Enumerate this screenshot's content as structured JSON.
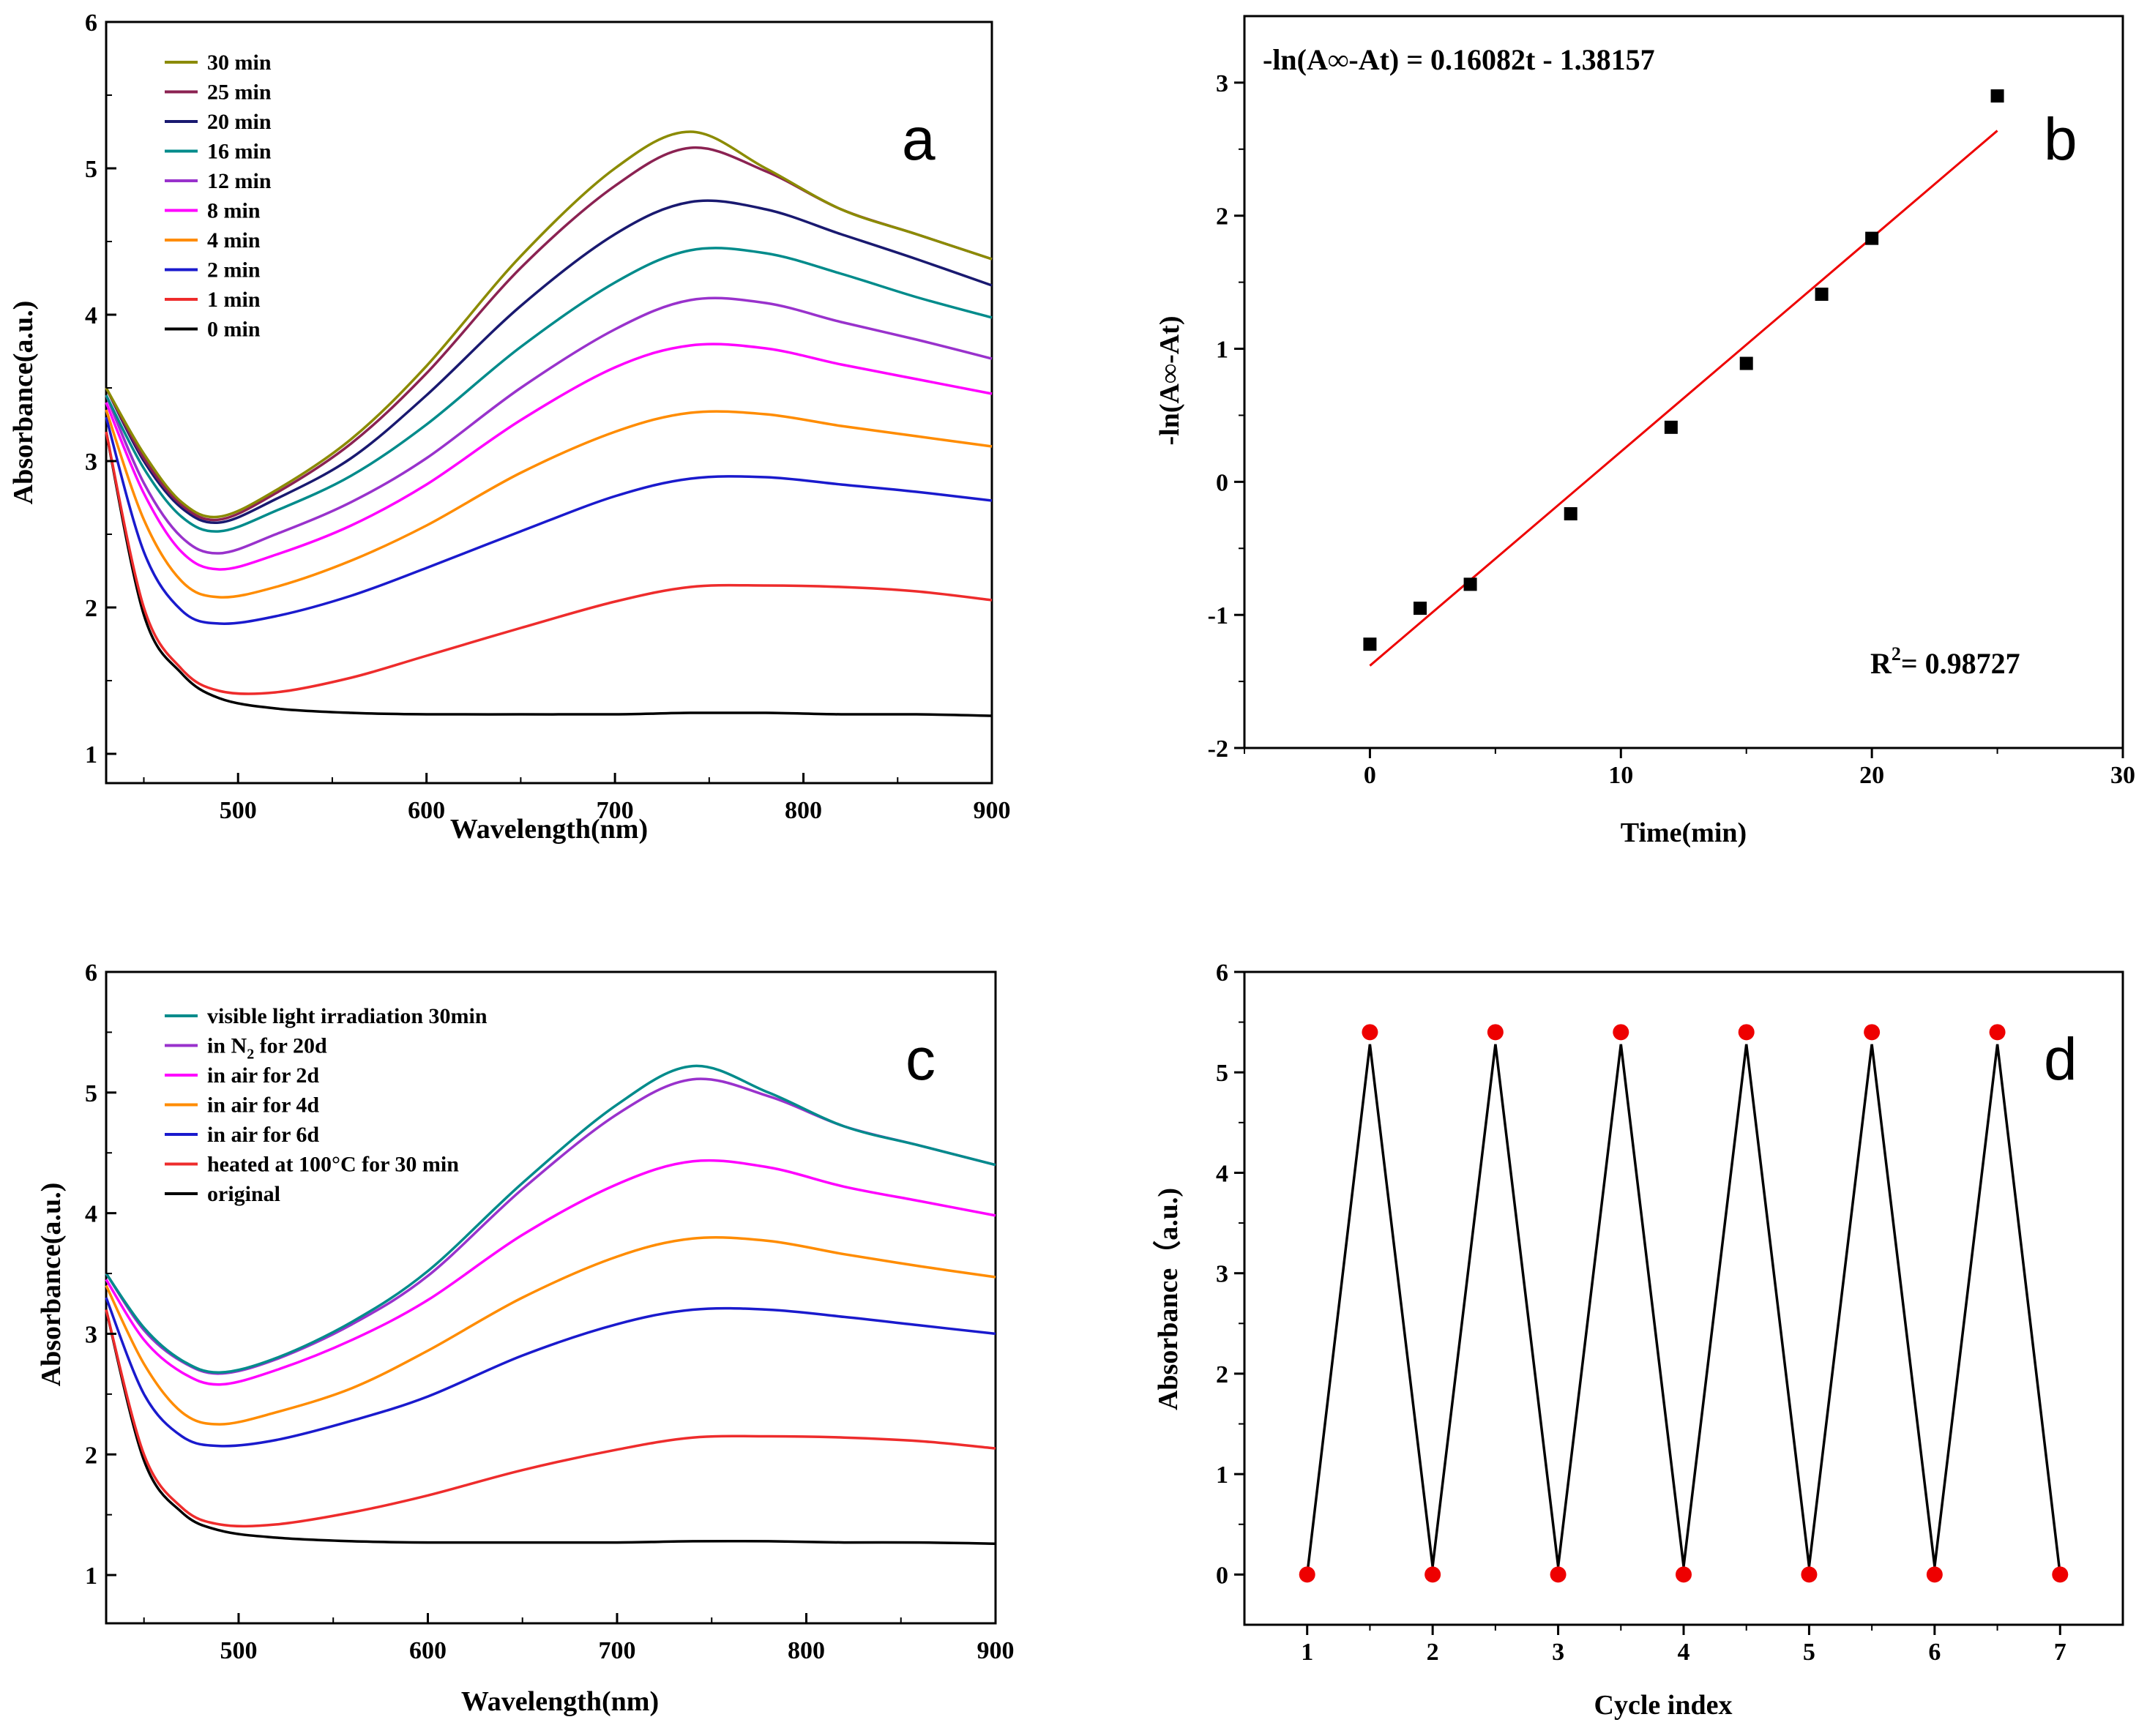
{
  "chart_data": [
    {
      "type": "line",
      "panel_label": "a",
      "xlabel": "Wavelength(nm)",
      "ylabel": "Absorbance(a.u.)",
      "xlim": [
        430,
        900
      ],
      "ylim": [
        0.8,
        6
      ],
      "xticks": [
        500,
        600,
        700,
        800,
        900
      ],
      "yticks": [
        1,
        2,
        3,
        4,
        5,
        6
      ],
      "legend_position": "top-left",
      "x": [
        430,
        450,
        470,
        490,
        520,
        560,
        600,
        650,
        700,
        740,
        780,
        820,
        860,
        900
      ],
      "series": [
        {
          "name": "30 min",
          "color": "#8b8b00",
          "values": [
            3.5,
            3.05,
            2.72,
            2.62,
            2.8,
            3.15,
            3.65,
            4.4,
            5.0,
            5.25,
            5.0,
            4.72,
            4.55,
            4.38
          ]
        },
        {
          "name": "25 min",
          "color": "#8b2252",
          "values": [
            3.5,
            3.02,
            2.7,
            2.6,
            2.78,
            3.12,
            3.6,
            4.32,
            4.88,
            5.14,
            4.98,
            4.72,
            4.55,
            4.38
          ]
        },
        {
          "name": "20 min",
          "color": "#191970",
          "values": [
            3.5,
            3.0,
            2.68,
            2.58,
            2.74,
            3.02,
            3.45,
            4.06,
            4.55,
            4.77,
            4.72,
            4.55,
            4.38,
            4.2
          ]
        },
        {
          "name": "16 min",
          "color": "#008b8b",
          "values": [
            3.45,
            2.95,
            2.62,
            2.52,
            2.66,
            2.9,
            3.25,
            3.78,
            4.22,
            4.44,
            4.42,
            4.28,
            4.12,
            3.98
          ]
        },
        {
          "name": "12 min",
          "color": "#9932cc",
          "values": [
            3.45,
            2.85,
            2.48,
            2.37,
            2.5,
            2.72,
            3.02,
            3.5,
            3.9,
            4.1,
            4.08,
            3.95,
            3.83,
            3.7
          ]
        },
        {
          "name": "8 min",
          "color": "#ff00ff",
          "values": [
            3.4,
            2.78,
            2.38,
            2.26,
            2.36,
            2.56,
            2.84,
            3.28,
            3.64,
            3.79,
            3.77,
            3.66,
            3.56,
            3.46
          ]
        },
        {
          "name": "4 min",
          "color": "#ff8c00",
          "values": [
            3.35,
            2.6,
            2.18,
            2.07,
            2.14,
            2.32,
            2.56,
            2.92,
            3.2,
            3.33,
            3.32,
            3.24,
            3.17,
            3.1
          ]
        },
        {
          "name": "2 min",
          "color": "#1a1acd",
          "values": [
            3.3,
            2.38,
            1.98,
            1.89,
            1.94,
            2.08,
            2.27,
            2.52,
            2.76,
            2.88,
            2.89,
            2.84,
            2.79,
            2.73
          ]
        },
        {
          "name": "1 min",
          "color": "#ee2c2c",
          "values": [
            3.2,
            2.0,
            1.58,
            1.43,
            1.42,
            1.52,
            1.67,
            1.86,
            2.04,
            2.14,
            2.15,
            2.14,
            2.11,
            2.05
          ]
        },
        {
          "name": "0 min",
          "color": "#000000",
          "values": [
            3.2,
            1.95,
            1.55,
            1.38,
            1.31,
            1.28,
            1.27,
            1.27,
            1.27,
            1.28,
            1.28,
            1.27,
            1.27,
            1.26
          ]
        }
      ]
    },
    {
      "type": "scatter",
      "panel_label": "b",
      "xlabel": "Time(min)",
      "ylabel": "-ln(A∞-At)",
      "xlim": [
        -5,
        30
      ],
      "ylim": [
        -2,
        3.5
      ],
      "xticks": [
        0,
        10,
        20,
        30
      ],
      "yticks": [
        -2,
        -1,
        0,
        1,
        2,
        3
      ],
      "equation": "-ln(A∞-At) = 0.16082t - 1.38157",
      "r2_label": "R",
      "r2_value": "= 0.98727",
      "x": [
        0,
        2,
        4,
        8,
        12,
        15,
        18,
        20,
        25
      ],
      "values": [
        -1.22,
        -0.95,
        -0.77,
        -0.24,
        0.41,
        0.89,
        1.41,
        1.83,
        2.9
      ],
      "fit": {
        "slope": 0.16082,
        "intercept": -1.38157,
        "x_range": [
          0,
          25
        ],
        "color": "#ee0000"
      },
      "marker_color": "#000000"
    },
    {
      "type": "line",
      "panel_label": "c",
      "xlabel": "Wavelength(nm)",
      "ylabel": "Absorbance(a.u.)",
      "xlim": [
        430,
        900
      ],
      "ylim": [
        0.6,
        6
      ],
      "xticks": [
        500,
        600,
        700,
        800,
        900
      ],
      "yticks": [
        1,
        2,
        3,
        4,
        5,
        6
      ],
      "legend_position": "top-left",
      "x": [
        430,
        450,
        470,
        490,
        520,
        560,
        600,
        650,
        700,
        740,
        780,
        820,
        860,
        900
      ],
      "series": [
        {
          "name": "visible light irradiation 30min",
          "color": "#008b8b",
          "values": [
            3.5,
            3.05,
            2.78,
            2.68,
            2.8,
            3.1,
            3.52,
            4.25,
            4.9,
            5.22,
            5.0,
            4.72,
            4.56,
            4.4
          ]
        },
        {
          "name": "in N",
          "sub": "2",
          "tail": " for 20d",
          "color": "#9932cc",
          "values": [
            3.5,
            3.03,
            2.77,
            2.67,
            2.79,
            3.08,
            3.48,
            4.2,
            4.82,
            5.11,
            4.97,
            4.72,
            4.56,
            4.4
          ]
        },
        {
          "name": "in air for 2d",
          "color": "#ff00ff",
          "values": [
            3.45,
            2.95,
            2.68,
            2.58,
            2.7,
            2.95,
            3.28,
            3.82,
            4.24,
            4.43,
            4.38,
            4.22,
            4.1,
            3.98
          ]
        },
        {
          "name": "in air for 4d",
          "color": "#ff8c00",
          "values": [
            3.4,
            2.75,
            2.35,
            2.25,
            2.35,
            2.55,
            2.86,
            3.3,
            3.64,
            3.79,
            3.77,
            3.66,
            3.56,
            3.47
          ]
        },
        {
          "name": "in air for 6d",
          "color": "#1a1acd",
          "values": [
            3.3,
            2.5,
            2.15,
            2.07,
            2.12,
            2.28,
            2.48,
            2.82,
            3.08,
            3.2,
            3.2,
            3.14,
            3.07,
            3.0
          ]
        },
        {
          "name": "heated at 100°C for 30 min",
          "color": "#ee2c2c",
          "values": [
            3.2,
            2.0,
            1.56,
            1.42,
            1.42,
            1.52,
            1.66,
            1.87,
            2.04,
            2.14,
            2.15,
            2.14,
            2.11,
            2.05
          ]
        },
        {
          "name": "original",
          "color": "#000000",
          "values": [
            3.2,
            1.95,
            1.52,
            1.37,
            1.31,
            1.28,
            1.27,
            1.27,
            1.27,
            1.28,
            1.28,
            1.27,
            1.27,
            1.26
          ]
        }
      ]
    },
    {
      "type": "line",
      "panel_label": "d",
      "xlabel": "Cycle index",
      "ylabel": "Absorbance（a.u.)",
      "xlim": [
        0.5,
        7.5
      ],
      "ylim": [
        -0.5,
        6
      ],
      "xticks": [
        1,
        2,
        3,
        4,
        5,
        6,
        7
      ],
      "yticks": [
        0,
        1,
        2,
        3,
        4,
        5,
        6
      ],
      "x": [
        1,
        1.5,
        2,
        2.5,
        3,
        3.5,
        4,
        4.5,
        5,
        5.5,
        6,
        6.5,
        7
      ],
      "values": [
        0,
        5.4,
        0,
        5.4,
        0,
        5.4,
        0,
        5.4,
        0,
        5.4,
        0,
        5.4,
        0
      ],
      "line_values": [
        0,
        5.28,
        0.08,
        5.28,
        0.08,
        5.28,
        0.08,
        5.28,
        0.08,
        5.28,
        0.08,
        5.28,
        0
      ],
      "line_color": "#000000",
      "marker_color": "#ee0000"
    }
  ]
}
